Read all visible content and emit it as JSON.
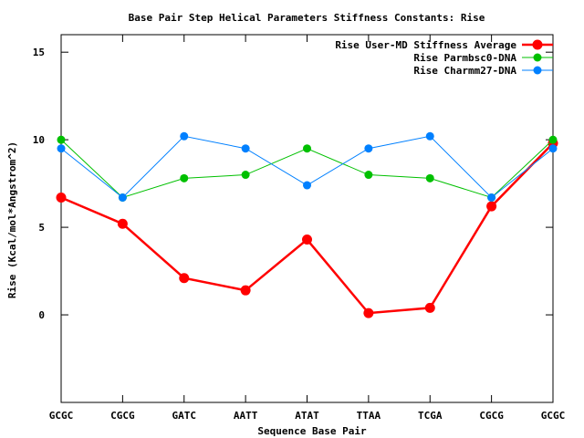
{
  "chart_data": {
    "type": "line",
    "title": "Base Pair Step Helical Parameters Stiffness Constants: Rise",
    "xlabel": "Sequence Base Pair",
    "ylabel": "Rise (Kcal/mol*Angstrom^2)",
    "categories": [
      "GCGC",
      "CGCG",
      "GATC",
      "AATT",
      "ATAT",
      "TTAA",
      "TCGA",
      "CGCG",
      "GCGC"
    ],
    "ylim": [
      -5,
      16
    ],
    "yticks": [
      0,
      5,
      10,
      15
    ],
    "grid": false,
    "legend_position": "top-right",
    "series": [
      {
        "name": "Rise User-MD Stiffness Average",
        "color": "#ff0000",
        "values": [
          6.7,
          5.2,
          2.1,
          1.4,
          4.3,
          0.1,
          0.4,
          6.2,
          9.8
        ]
      },
      {
        "name": "Rise Parmbsc0-DNA",
        "color": "#00c000",
        "values": [
          10.0,
          6.7,
          7.8,
          8.0,
          9.5,
          8.0,
          7.8,
          6.7,
          10.0
        ]
      },
      {
        "name": "Rise Charmm27-DNA",
        "color": "#0080ff",
        "values": [
          9.5,
          6.7,
          10.2,
          9.5,
          7.4,
          9.5,
          10.2,
          6.7,
          9.5
        ]
      }
    ]
  }
}
